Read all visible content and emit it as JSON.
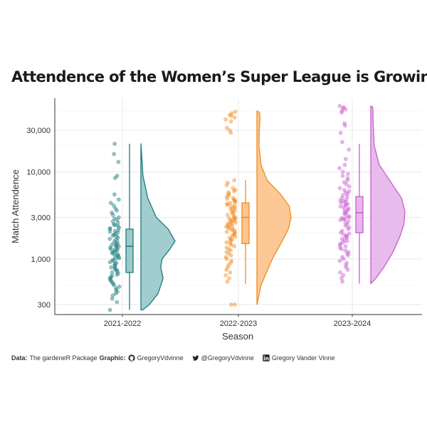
{
  "chart_data": {
    "type": "raincloud",
    "title": "Attendence of the Women’s Super League is Growing",
    "xlabel": "Season",
    "ylabel": "Match Attendence",
    "yscale": "log10",
    "ylim": [
      230,
      70000
    ],
    "yticks": [
      300,
      1000,
      3000,
      10000,
      30000
    ],
    "ytick_labels": [
      "300",
      "1,000",
      "3,000",
      "10,000",
      "30,000"
    ],
    "categories": [
      "2021-2022",
      "2022-2023",
      "2023-2024"
    ],
    "colors": {
      "2021-2022": "#1a7b7d",
      "2022-2023": "#f28b1f",
      "2023-2024": "#c85dd1"
    },
    "fills": {
      "2021-2022": "#9ccacb",
      "2022-2023": "#fcc58f",
      "2023-2024": "#e6b7ea"
    },
    "series": [
      {
        "season": "2021-2022",
        "box": {
          "min": 260,
          "q1": 700,
          "median": 1400,
          "q3": 2200,
          "max": 21000
        },
        "density": [
          [
            260,
            0.05
          ],
          [
            300,
            0.25
          ],
          [
            400,
            0.5
          ],
          [
            600,
            0.65
          ],
          [
            800,
            0.58
          ],
          [
            1000,
            0.62
          ],
          [
            1300,
            0.85
          ],
          [
            1600,
            1.0
          ],
          [
            2200,
            0.8
          ],
          [
            3000,
            0.45
          ],
          [
            5000,
            0.2
          ],
          [
            9000,
            0.06
          ],
          [
            21000,
            0.0
          ]
        ],
        "points": [
          21000,
          16000,
          13000,
          9000,
          8500,
          5500,
          4800,
          4400,
          4100,
          3800,
          3600,
          3400,
          3200,
          3000,
          2900,
          2800,
          2700,
          2600,
          2500,
          2450,
          2400,
          2300,
          2250,
          2200,
          2150,
          2100,
          2050,
          2000,
          1950,
          1900,
          1850,
          1800,
          1750,
          1700,
          1650,
          1600,
          1550,
          1500,
          1480,
          1450,
          1420,
          1400,
          1380,
          1350,
          1320,
          1300,
          1280,
          1250,
          1220,
          1200,
          1180,
          1150,
          1120,
          1100,
          1080,
          1050,
          1020,
          1000,
          980,
          950,
          920,
          900,
          880,
          850,
          820,
          800,
          780,
          760,
          740,
          720,
          700,
          680,
          660,
          640,
          620,
          600,
          580,
          560,
          540,
          520,
          500,
          480,
          460,
          440,
          420,
          400,
          380,
          350,
          320,
          260
        ]
      },
      {
        "season": "2022-2023",
        "box": {
          "min": 520,
          "q1": 1500,
          "median": 3000,
          "q3": 4400,
          "max": 8000
        },
        "density": [
          [
            300,
            0.0
          ],
          [
            350,
            0.04
          ],
          [
            500,
            0.12
          ],
          [
            700,
            0.28
          ],
          [
            1000,
            0.45
          ],
          [
            1500,
            0.7
          ],
          [
            2200,
            0.92
          ],
          [
            3000,
            1.0
          ],
          [
            4000,
            0.95
          ],
          [
            5500,
            0.7
          ],
          [
            8000,
            0.3
          ],
          [
            12000,
            0.12
          ],
          [
            20000,
            0.06
          ],
          [
            30000,
            0.07
          ],
          [
            40000,
            0.09
          ],
          [
            48000,
            0.08
          ],
          [
            50000,
            0.0
          ]
        ],
        "points": [
          49000,
          47000,
          45000,
          44000,
          42000,
          40000,
          38000,
          32000,
          30000,
          28000,
          8000,
          7500,
          7000,
          6500,
          6200,
          6000,
          5800,
          5600,
          5400,
          5200,
          5000,
          4900,
          4800,
          4700,
          4600,
          4500,
          4400,
          4300,
          4200,
          4100,
          4000,
          3900,
          3800,
          3700,
          3600,
          3500,
          3400,
          3300,
          3200,
          3100,
          3000,
          2950,
          2900,
          2850,
          2800,
          2750,
          2700,
          2650,
          2600,
          2550,
          2500,
          2450,
          2400,
          2350,
          2300,
          2250,
          2200,
          2150,
          2100,
          2050,
          2000,
          1950,
          1900,
          1850,
          1800,
          1750,
          1700,
          1650,
          1600,
          1550,
          1500,
          1450,
          1400,
          1350,
          1300,
          1250,
          1200,
          1150,
          1100,
          1050,
          1000,
          950,
          900,
          850,
          800,
          750,
          700,
          650,
          600,
          550,
          300,
          300
        ]
      },
      {
        "season": "2023-2024",
        "box": {
          "min": 520,
          "q1": 2000,
          "median": 3400,
          "q3": 5200,
          "max": 21000
        },
        "density": [
          [
            520,
            0.0
          ],
          [
            600,
            0.15
          ],
          [
            800,
            0.38
          ],
          [
            1200,
            0.65
          ],
          [
            1800,
            0.85
          ],
          [
            2500,
            0.97
          ],
          [
            3500,
            1.0
          ],
          [
            5000,
            0.9
          ],
          [
            8000,
            0.55
          ],
          [
            12000,
            0.25
          ],
          [
            20000,
            0.1
          ],
          [
            35000,
            0.07
          ],
          [
            55000,
            0.06
          ],
          [
            57000,
            0.0
          ]
        ],
        "points": [
          57000,
          55000,
          54000,
          52000,
          50000,
          48000,
          36000,
          34000,
          28000,
          22000,
          18000,
          14000,
          12000,
          11000,
          10000,
          9500,
          9000,
          8500,
          8000,
          7600,
          7200,
          6800,
          6500,
          6200,
          6000,
          5800,
          5600,
          5400,
          5200,
          5000,
          4800,
          4700,
          4600,
          4500,
          4400,
          4300,
          4200,
          4100,
          4000,
          3900,
          3800,
          3700,
          3600,
          3500,
          3400,
          3300,
          3200,
          3100,
          3000,
          2950,
          2900,
          2850,
          2800,
          2700,
          2600,
          2500,
          2400,
          2300,
          2200,
          2100,
          2000,
          1950,
          1900,
          1850,
          1800,
          1750,
          1700,
          1650,
          1600,
          1550,
          1500,
          1450,
          1400,
          1350,
          1300,
          1250,
          1200,
          1150,
          1100,
          1050,
          1000,
          950,
          900,
          850,
          800,
          750,
          700,
          650,
          600,
          550
        ]
      }
    ]
  },
  "caption": {
    "data_label": "Data:",
    "data_text": "The gardeneR Package",
    "graphic_label": "Graphic:",
    "github": "GregoryVdvinne",
    "twitter": "@GregoryVdvinne",
    "linkedin": "Gregory Vander Vinne"
  }
}
